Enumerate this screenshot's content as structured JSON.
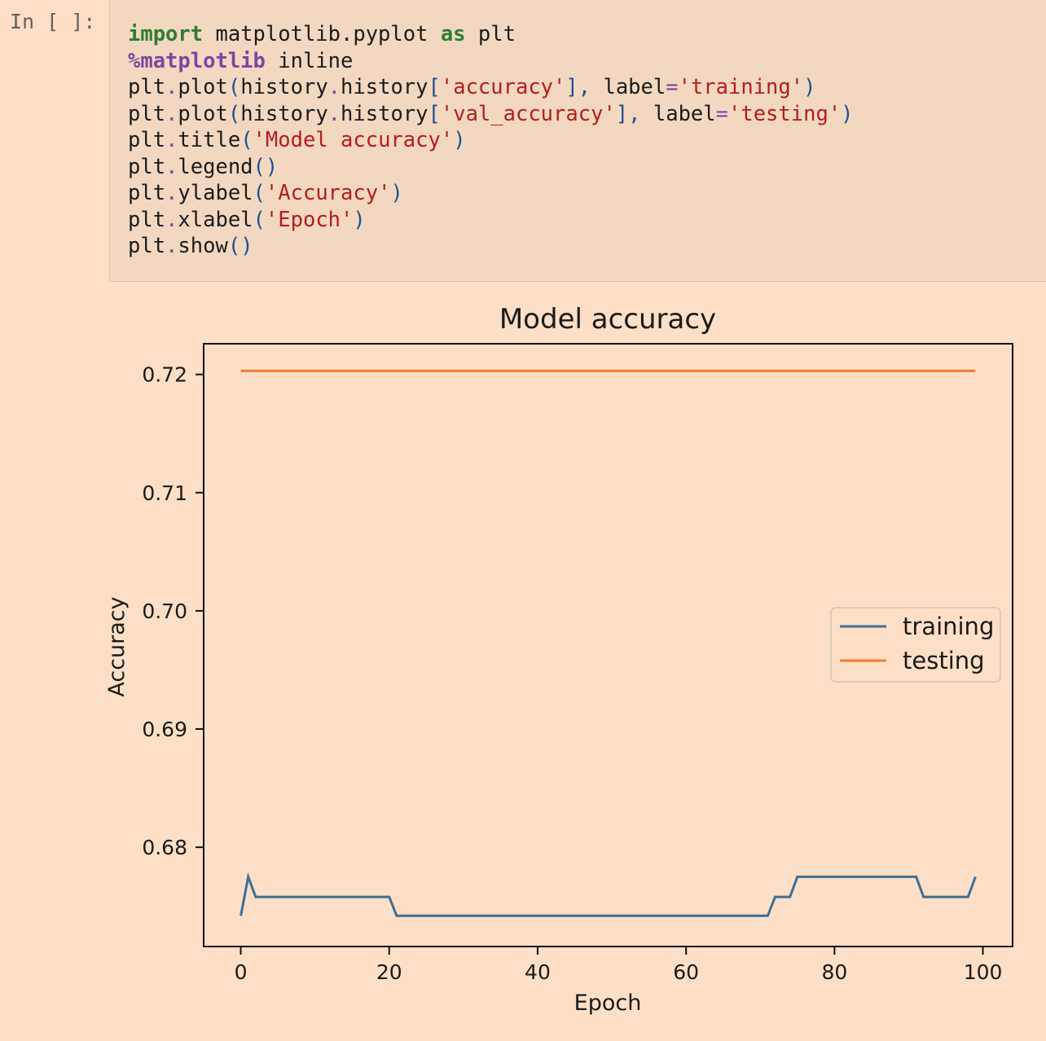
{
  "cell": {
    "prompt": "In [ ]:",
    "code": [
      [
        [
          "kw",
          "import"
        ],
        [
          "t",
          " matplotlib.pyplot "
        ],
        [
          "kw",
          "as"
        ],
        [
          "t",
          " plt"
        ]
      ],
      [
        [
          "mg",
          "%matplotlib"
        ],
        [
          "t",
          " inline"
        ]
      ],
      [
        [
          "t",
          "plt"
        ],
        [
          "op",
          "."
        ],
        [
          "t",
          "plot"
        ],
        [
          "pn",
          "("
        ],
        [
          "t",
          "history"
        ],
        [
          "op",
          "."
        ],
        [
          "t",
          "history"
        ],
        [
          "pn",
          "["
        ],
        [
          "st",
          "'accuracy'"
        ],
        [
          "pn",
          "],"
        ],
        [
          "t",
          " label"
        ],
        [
          "op",
          "="
        ],
        [
          "st",
          "'training'"
        ],
        [
          "pn",
          ")"
        ]
      ],
      [
        [
          "t",
          "plt"
        ],
        [
          "op",
          "."
        ],
        [
          "t",
          "plot"
        ],
        [
          "pn",
          "("
        ],
        [
          "t",
          "history"
        ],
        [
          "op",
          "."
        ],
        [
          "t",
          "history"
        ],
        [
          "pn",
          "["
        ],
        [
          "st",
          "'val_accuracy'"
        ],
        [
          "pn",
          "],"
        ],
        [
          "t",
          " label"
        ],
        [
          "op",
          "="
        ],
        [
          "st",
          "'testing'"
        ],
        [
          "pn",
          ")"
        ]
      ],
      [
        [
          "t",
          "plt"
        ],
        [
          "op",
          "."
        ],
        [
          "t",
          "title"
        ],
        [
          "pn",
          "("
        ],
        [
          "st",
          "'Model accuracy'"
        ],
        [
          "pn",
          ")"
        ]
      ],
      [
        [
          "t",
          "plt"
        ],
        [
          "op",
          "."
        ],
        [
          "t",
          "legend"
        ],
        [
          "pn",
          "()"
        ]
      ],
      [
        [
          "t",
          "plt"
        ],
        [
          "op",
          "."
        ],
        [
          "t",
          "ylabel"
        ],
        [
          "pn",
          "("
        ],
        [
          "st",
          "'Accuracy'"
        ],
        [
          "pn",
          ")"
        ]
      ],
      [
        [
          "t",
          "plt"
        ],
        [
          "op",
          "."
        ],
        [
          "t",
          "xlabel"
        ],
        [
          "pn",
          "("
        ],
        [
          "st",
          "'Epoch'"
        ],
        [
          "pn",
          ")"
        ]
      ],
      [
        [
          "t",
          "plt"
        ],
        [
          "op",
          "."
        ],
        [
          "t",
          "show"
        ],
        [
          "pn",
          "()"
        ]
      ]
    ]
  },
  "chart_data": {
    "type": "line",
    "title": "Model accuracy",
    "xlabel": "Epoch",
    "ylabel": "Accuracy",
    "xlim": [
      -5,
      104
    ],
    "ylim": [
      0.6716,
      0.7226
    ],
    "xticks": [
      0,
      20,
      40,
      60,
      80,
      100
    ],
    "yticks": [
      0.68,
      0.69,
      0.7,
      0.71,
      0.72
    ],
    "ytick_labels": [
      "0.68",
      "0.69",
      "0.70",
      "0.71",
      "0.72"
    ],
    "grid": false,
    "legend": "center-right",
    "series": [
      {
        "name": "training",
        "color": "#3e6f96",
        "points": [
          [
            0,
            0.6742
          ],
          [
            1,
            0.6775
          ],
          [
            2,
            0.6758
          ],
          [
            20,
            0.6758
          ],
          [
            21,
            0.6742
          ],
          [
            71,
            0.6742
          ],
          [
            72,
            0.6758
          ],
          [
            74,
            0.6758
          ],
          [
            75,
            0.6775
          ],
          [
            91,
            0.6775
          ],
          [
            92,
            0.6758
          ],
          [
            98,
            0.6758
          ],
          [
            99,
            0.6775
          ]
        ]
      },
      {
        "name": "testing",
        "color": "#f07f2d",
        "points": [
          [
            0,
            0.7203
          ],
          [
            99,
            0.7203
          ]
        ]
      }
    ]
  }
}
